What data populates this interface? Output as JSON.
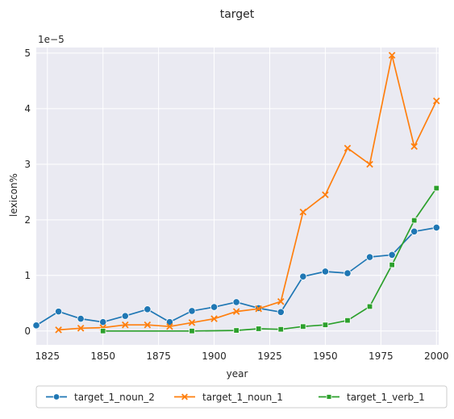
{
  "chart_data": {
    "type": "line",
    "title": "target",
    "xlabel": "year",
    "ylabel": "lexicon%",
    "y_multiplier_label": "1e−5",
    "xlim": [
      1820,
      2001
    ],
    "ylim": [
      -0.25,
      5.1
    ],
    "x_ticks": [
      1825,
      1850,
      1875,
      1900,
      1925,
      1950,
      1975,
      2000
    ],
    "y_ticks": [
      0,
      1,
      2,
      3,
      4,
      5
    ],
    "grid": true,
    "legend_position": "bottom-center",
    "background": "#eaeaf2",
    "series": [
      {
        "name": "target_1_noun_2",
        "color": "#1f77b4",
        "marker": "circle",
        "x": [
          1820,
          1830,
          1840,
          1850,
          1860,
          1870,
          1880,
          1890,
          1900,
          1910,
          1920,
          1930,
          1940,
          1950,
          1960,
          1970,
          1980,
          1990,
          2000
        ],
        "y": [
          0.1,
          0.35,
          0.22,
          0.16,
          0.27,
          0.39,
          0.16,
          0.36,
          0.43,
          0.52,
          0.41,
          0.34,
          0.98,
          1.07,
          1.04,
          1.33,
          1.37,
          1.79,
          1.86
        ]
      },
      {
        "name": "target_1_noun_1",
        "color": "#ff7f0e",
        "marker": "x",
        "x": [
          1830,
          1840,
          1850,
          1860,
          1870,
          1880,
          1890,
          1900,
          1910,
          1920,
          1930,
          1940,
          1950,
          1960,
          1970,
          1980,
          1990,
          2000
        ],
        "y": [
          0.02,
          0.05,
          0.06,
          0.11,
          0.11,
          0.08,
          0.15,
          0.22,
          0.35,
          0.4,
          0.53,
          2.14,
          2.45,
          3.29,
          3.0,
          4.96,
          3.32,
          4.14
        ]
      },
      {
        "name": "target_1_verb_1",
        "color": "#2ca02c",
        "marker": "square",
        "x": [
          1850,
          1890,
          1910,
          1920,
          1930,
          1940,
          1950,
          1960,
          1970,
          1980,
          1990,
          2000
        ],
        "y": [
          0.0,
          0.0,
          0.01,
          0.04,
          0.03,
          0.08,
          0.11,
          0.19,
          0.44,
          1.19,
          1.99,
          2.57
        ]
      }
    ]
  }
}
